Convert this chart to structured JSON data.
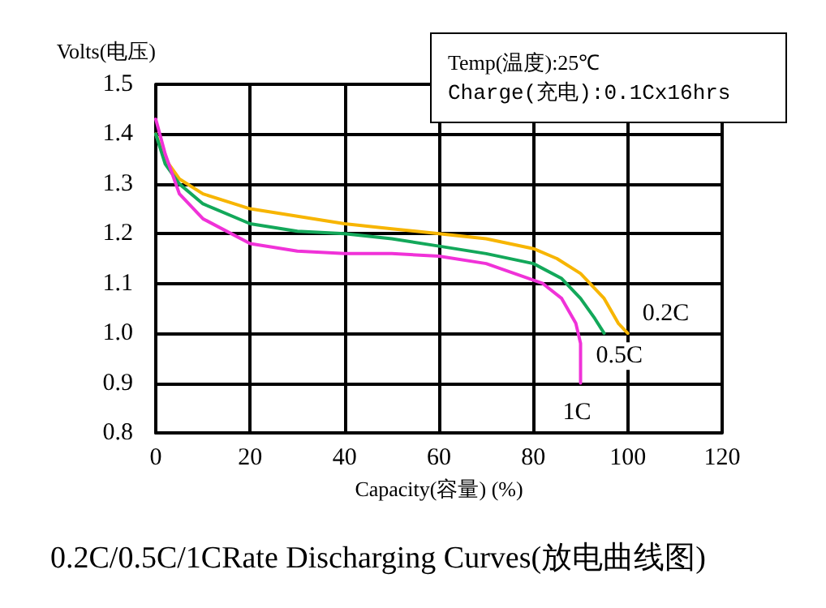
{
  "chart_data": {
    "type": "line",
    "title": "0.2C/0.5C/1CRate Discharging Curves(放电曲线图)",
    "xlabel": "Capacity(容量) (%)",
    "ylabel": "Volts(电压)",
    "annotations": [
      "Temp(温度):25℃",
      "Charge(充电):0.1Cx16hrs"
    ],
    "xlim": [
      0,
      120
    ],
    "xticks": [
      0,
      20,
      40,
      60,
      80,
      100,
      120
    ],
    "ylim": [
      0.8,
      1.5
    ],
    "yticks": [
      0.8,
      0.9,
      {
        "value": 1,
        "label": "1.0"
      },
      1.1,
      1.2,
      1.3,
      1.4,
      1.5
    ],
    "grid": true,
    "legend": false,
    "marker": "none",
    "line_style": "solid",
    "series": [
      {
        "name": "0.2C",
        "color": "#f7b500",
        "x": [
          0,
          2,
          5,
          10,
          20,
          30,
          40,
          50,
          60,
          70,
          80,
          85,
          90,
          95,
          98,
          100
        ],
        "values": [
          1.4,
          1.35,
          1.31,
          1.28,
          1.25,
          1.235,
          1.22,
          1.21,
          1.2,
          1.19,
          1.17,
          1.15,
          1.12,
          1.07,
          1.02,
          1.0
        ]
      },
      {
        "name": "0.5C",
        "color": "#13a85a",
        "x": [
          0,
          2,
          5,
          10,
          20,
          30,
          40,
          50,
          60,
          70,
          80,
          86,
          90,
          93,
          95
        ],
        "values": [
          1.4,
          1.34,
          1.3,
          1.26,
          1.22,
          1.205,
          1.2,
          1.19,
          1.175,
          1.16,
          1.14,
          1.11,
          1.07,
          1.03,
          1.0
        ]
      },
      {
        "name": "1C",
        "color": "#f032d8",
        "x": [
          0,
          2,
          5,
          10,
          20,
          30,
          40,
          50,
          60,
          70,
          76,
          82,
          86,
          89,
          90,
          90
        ],
        "values": [
          1.43,
          1.36,
          1.28,
          1.23,
          1.18,
          1.165,
          1.16,
          1.16,
          1.155,
          1.14,
          1.12,
          1.1,
          1.07,
          1.02,
          0.98,
          0.9
        ]
      }
    ]
  }
}
